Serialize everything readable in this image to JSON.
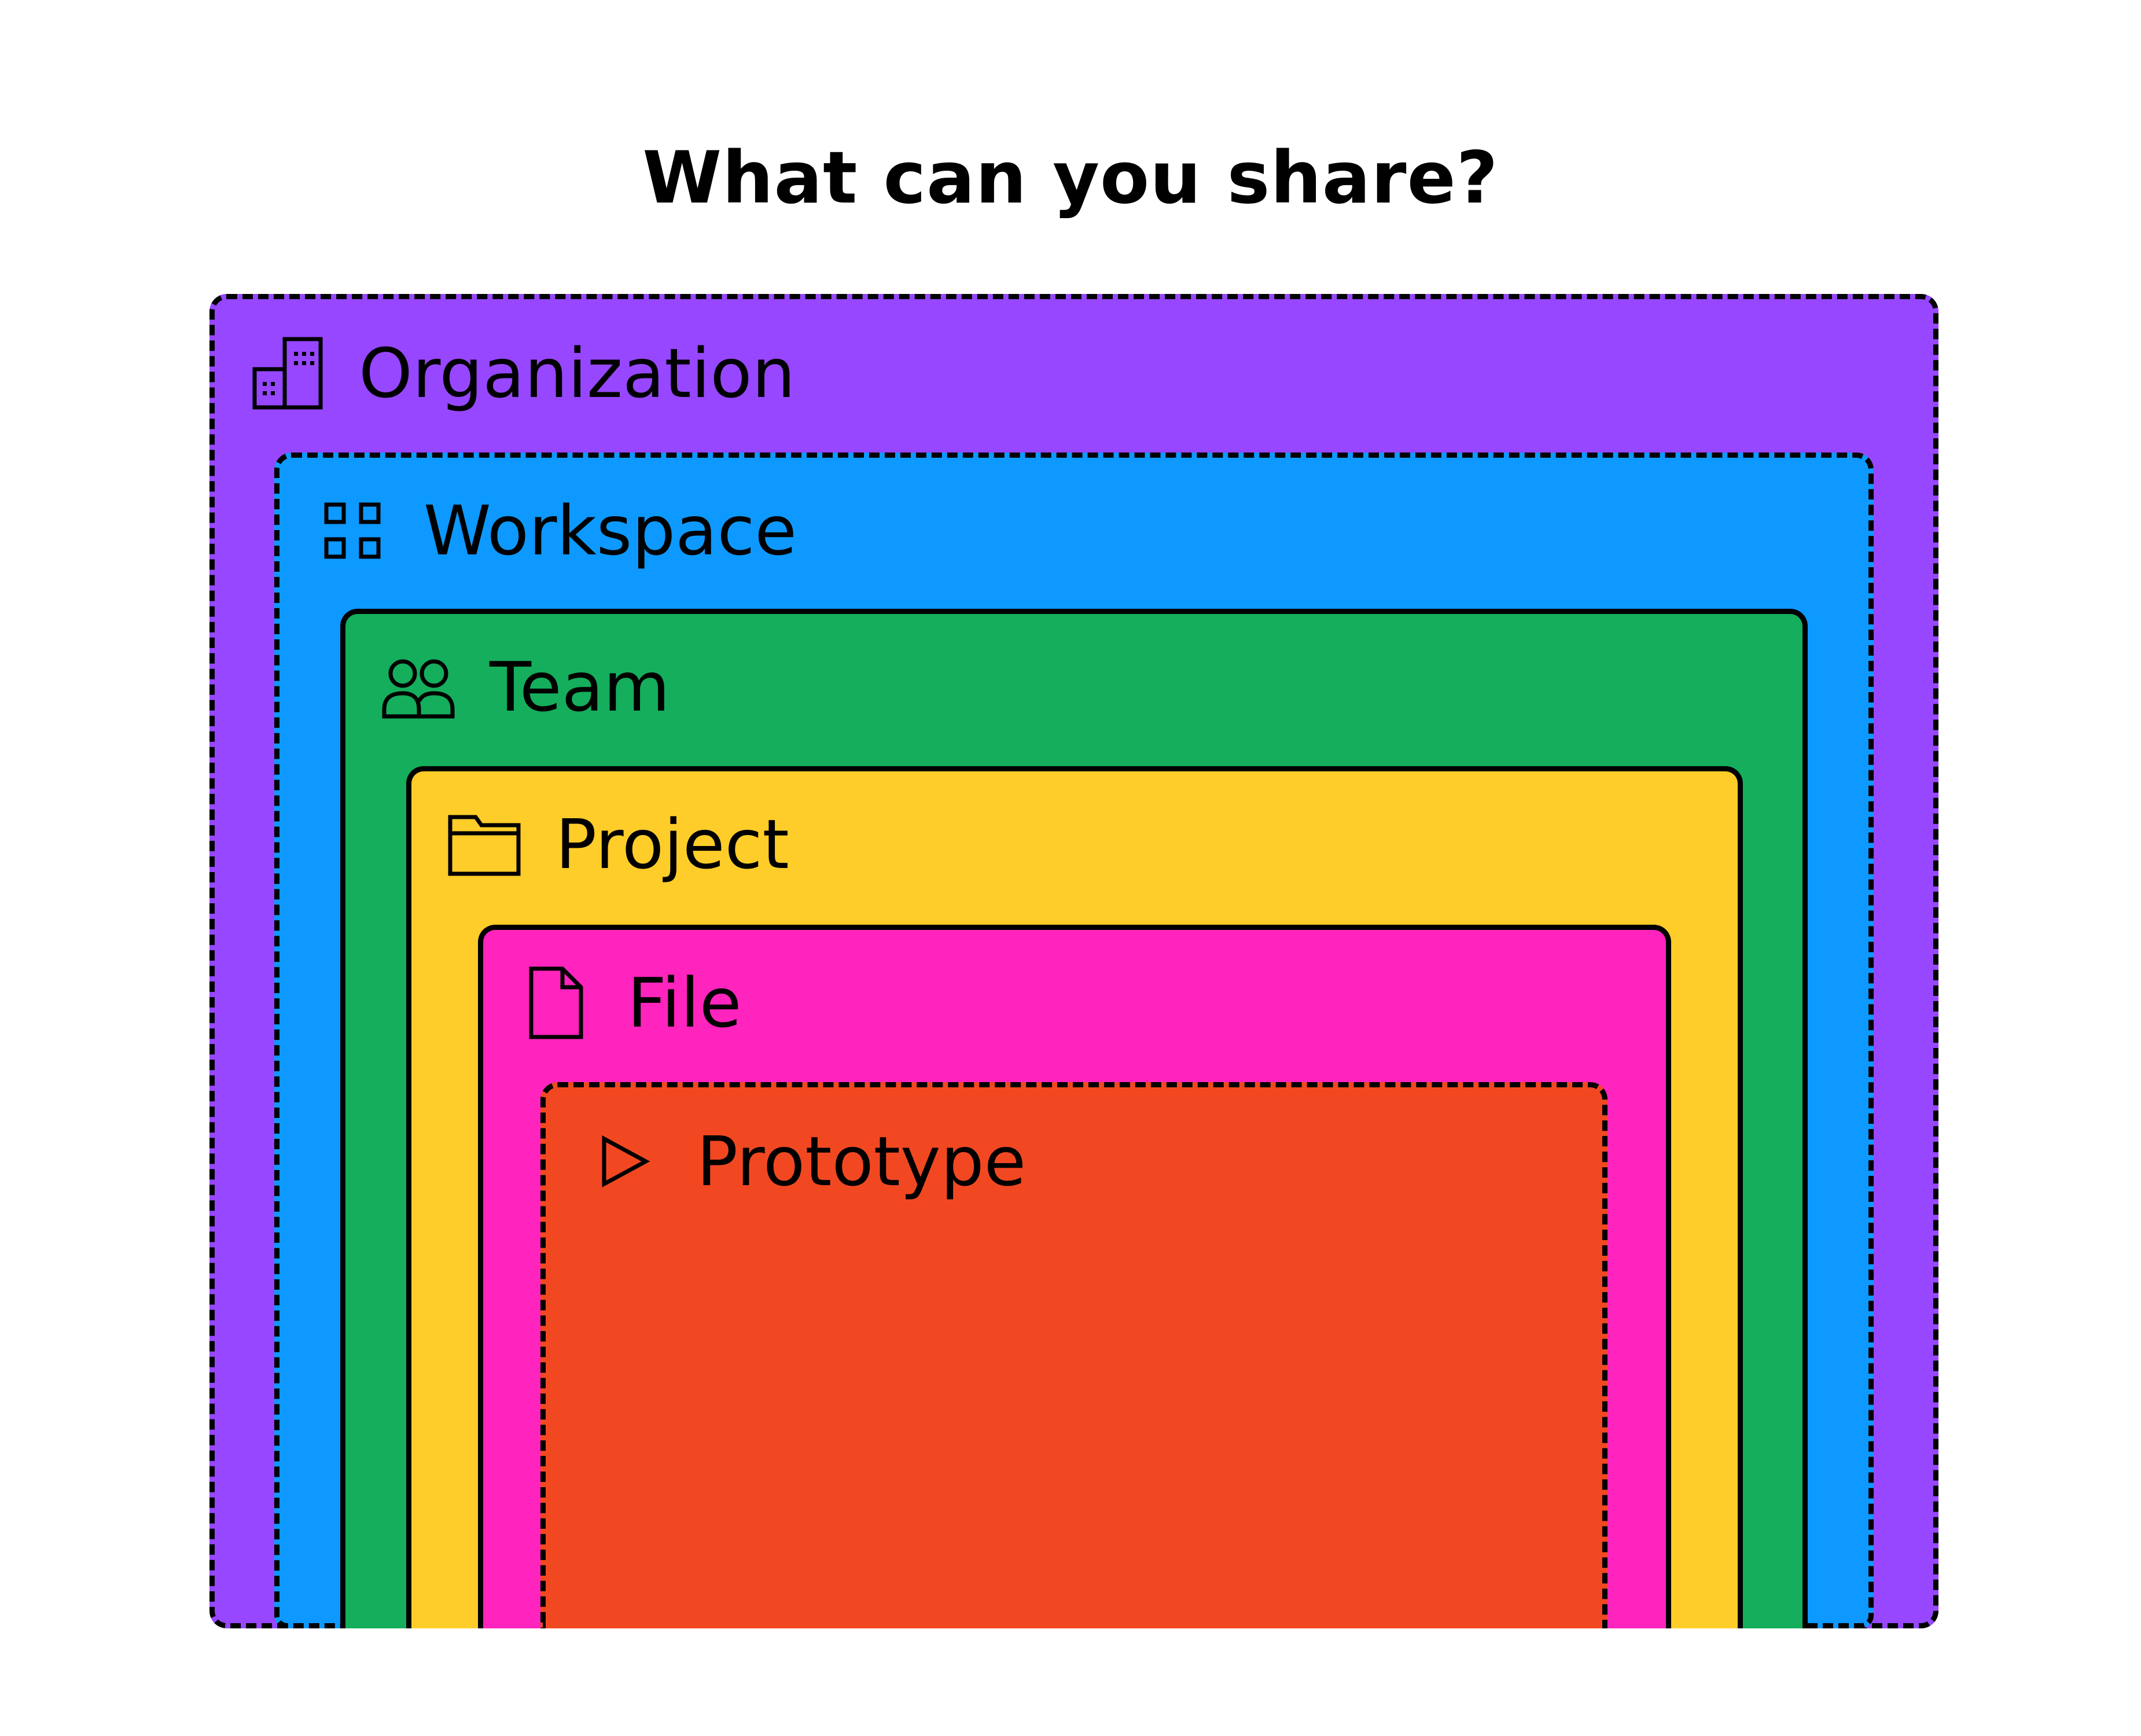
{
  "title": "What can you share?",
  "levels": [
    {
      "key": "organization",
      "label": "Organization",
      "icon": "building-icon",
      "color": "#9747FF",
      "border": "dashed"
    },
    {
      "key": "workspace",
      "label": "Workspace",
      "icon": "grid-icon",
      "color": "#0D99FF",
      "border": "dashed"
    },
    {
      "key": "team",
      "label": "Team",
      "icon": "people-icon",
      "color": "#14AE5C",
      "border": "solid"
    },
    {
      "key": "project",
      "label": "Project",
      "icon": "folder-icon",
      "color": "#FFCD29",
      "border": "solid"
    },
    {
      "key": "file",
      "label": "File",
      "icon": "file-icon",
      "color": "#FF24BD",
      "border": "solid"
    },
    {
      "key": "prototype",
      "label": "Prototype",
      "icon": "play-icon",
      "color": "#F24822",
      "border": "dashed"
    }
  ]
}
